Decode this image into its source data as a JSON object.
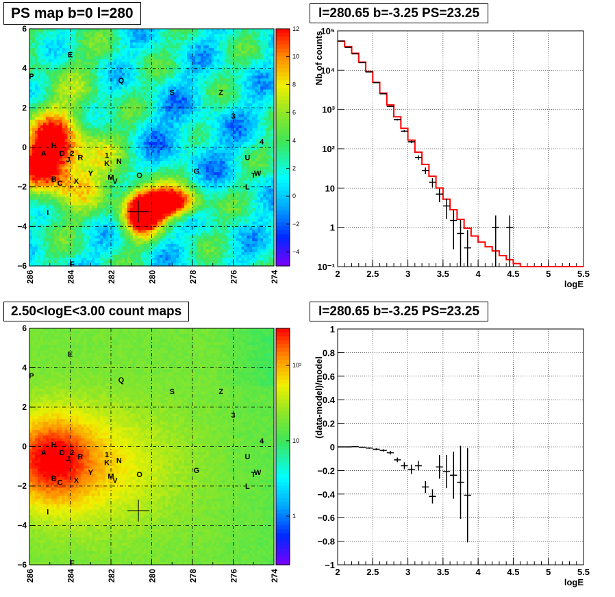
{
  "panels": {
    "tl_title": "PS map b=0 l=280",
    "tr_title": "l=280.65 b=-3.25 PS=23.25",
    "bl_title": "2.50<logE<3.00 count maps",
    "br_title": "l=280.65 b=-3.25 PS=23.25"
  },
  "colors": {
    "data": "#000000",
    "model": "#ff0000",
    "map_low": "#7b00ff",
    "map_high": "#ff0000",
    "grid": "#000000"
  },
  "map_axes": {
    "x_ticks": [
      "286",
      "284",
      "282",
      "280",
      "278",
      "276",
      "274"
    ],
    "y_ticks": [
      "6",
      "4",
      "2",
      "0",
      "−2",
      "−4",
      "−6"
    ],
    "xlim": [
      286,
      274
    ],
    "ylim": [
      -6,
      6
    ]
  },
  "sources": [
    {
      "name": "E",
      "l": 284.0,
      "b": 4.7
    },
    {
      "name": "P",
      "l": 285.9,
      "b": 3.6
    },
    {
      "name": "Q",
      "l": 281.5,
      "b": 3.4
    },
    {
      "name": "S",
      "l": 279.0,
      "b": 2.8
    },
    {
      "name": "Z",
      "l": 276.6,
      "b": 2.8
    },
    {
      "name": "3",
      "l": 276.0,
      "b": 1.6
    },
    {
      "name": "4",
      "l": 274.6,
      "b": 0.3
    },
    {
      "name": "H",
      "l": 284.8,
      "b": 0.1
    },
    {
      "name": "A",
      "l": 285.3,
      "b": -0.3
    },
    {
      "name": "D",
      "l": 284.4,
      "b": -0.3
    },
    {
      "name": "2",
      "l": 283.9,
      "b": -0.3
    },
    {
      "name": "J",
      "l": 284.1,
      "b": -0.6
    },
    {
      "name": "R",
      "l": 283.5,
      "b": -0.5
    },
    {
      "name": "1",
      "l": 282.2,
      "b": -0.4
    },
    {
      "name": "K",
      "l": 282.2,
      "b": -0.8
    },
    {
      "name": "N",
      "l": 281.6,
      "b": -0.7
    },
    {
      "name": "U",
      "l": 275.3,
      "b": -0.5
    },
    {
      "name": "Y",
      "l": 283.0,
      "b": -1.3
    },
    {
      "name": "G",
      "l": 277.8,
      "b": -1.2
    },
    {
      "name": "O",
      "l": 280.6,
      "b": -1.4
    },
    {
      "name": "M",
      "l": 282.0,
      "b": -1.5
    },
    {
      "name": "B",
      "l": 284.8,
      "b": -1.6
    },
    {
      "name": "X",
      "l": 283.7,
      "b": -1.7
    },
    {
      "name": "V",
      "l": 281.8,
      "b": -1.7
    },
    {
      "name": "W",
      "l": 274.8,
      "b": -1.3
    },
    {
      "name": "T",
      "l": 275.0,
      "b": -1.4
    },
    {
      "name": "C",
      "l": 284.5,
      "b": -1.8
    },
    {
      "name": "L",
      "l": 275.3,
      "b": -2.0
    },
    {
      "name": "I",
      "l": 285.1,
      "b": -3.3
    },
    {
      "name": "F",
      "l": 283.9,
      "b": -5.9
    }
  ],
  "target": {
    "l": 280.65,
    "b": -3.25
  },
  "chart_data": [
    {
      "type": "heatmap",
      "title": "PS map b=0 l=280",
      "xlabel": "",
      "ylabel": "",
      "xlim": [
        286,
        274
      ],
      "ylim": [
        -6,
        6
      ],
      "colorbar": {
        "scale": "linear",
        "range": [
          -5,
          12
        ],
        "ticks": [
          "12",
          "10",
          "8",
          "6",
          "4",
          "2",
          "0",
          "−2",
          "−4"
        ]
      },
      "features": [
        {
          "desc": "hot region",
          "l": 285.3,
          "b": -0.2,
          "peak": 12
        },
        {
          "desc": "hot region",
          "l": 280.4,
          "b": -3.1,
          "peak": 12
        },
        {
          "desc": "hot region",
          "l": 278.9,
          "b": -2.7,
          "peak": 12
        }
      ]
    },
    {
      "type": "line",
      "title": "l=280.65 b=-3.25 PS=23.25",
      "xlabel": "logE",
      "ylabel": "Nb of counts",
      "xlim": [
        2,
        5.5
      ],
      "ylim": [
        0.1,
        100000
      ],
      "yscale": "log",
      "x_ticks": [
        "2",
        "2.5",
        "3",
        "3.5",
        "4",
        "4.5",
        "5",
        "5.5"
      ],
      "y_ticks": [
        "10⁵",
        "10⁴",
        "10³",
        "10²",
        "10",
        "1",
        "10⁻¹"
      ],
      "grid": true,
      "bin_edges": [
        2.0,
        2.1,
        2.2,
        2.3,
        2.4,
        2.5,
        2.6,
        2.7,
        2.8,
        2.9,
        3.0,
        3.1,
        3.2,
        3.3,
        3.4,
        3.5,
        3.6,
        3.7,
        3.8,
        3.9,
        4.0,
        4.1,
        4.2,
        4.3,
        4.4,
        4.5,
        4.6,
        4.7,
        4.8,
        4.9,
        5.0,
        5.1,
        5.2,
        5.3,
        5.4,
        5.5
      ],
      "model": [
        55000,
        40000,
        27000,
        16000,
        9200,
        4900,
        2600,
        1300,
        650,
        330,
        165,
        82,
        40,
        20,
        10,
        5.2,
        2.8,
        1.6,
        0.95,
        0.6,
        0.42,
        0.32,
        0.25,
        0.19,
        0.15,
        0.12,
        0.1,
        0.1,
        0.1,
        0.1,
        0.1,
        0.1,
        0.1,
        0.1,
        0.1
      ],
      "data_points": [
        {
          "x": 2.05,
          "y": 55000
        },
        {
          "x": 2.15,
          "y": 38000
        },
        {
          "x": 2.25,
          "y": 26000
        },
        {
          "x": 2.35,
          "y": 15500
        },
        {
          "x": 2.45,
          "y": 9000
        },
        {
          "x": 2.55,
          "y": 4800
        },
        {
          "x": 2.65,
          "y": 2500
        },
        {
          "x": 2.75,
          "y": 1200
        },
        {
          "x": 2.85,
          "y": 550
        },
        {
          "x": 2.95,
          "y": 280
        },
        {
          "x": 3.05,
          "y": 150
        },
        {
          "x": 3.15,
          "y": 60
        },
        {
          "x": 3.25,
          "y": 28
        },
        {
          "x": 3.35,
          "y": 14
        },
        {
          "x": 3.45,
          "y": 7
        },
        {
          "x": 3.55,
          "y": 3.5
        },
        {
          "x": 3.65,
          "y": 1.5
        },
        {
          "x": 3.75,
          "y": 0.7
        },
        {
          "x": 3.85,
          "y": 0.3
        },
        {
          "x": 4.25,
          "y": 1
        },
        {
          "x": 4.45,
          "y": 1
        }
      ]
    },
    {
      "type": "heatmap",
      "title": "2.50<logE<3.00 count maps",
      "xlabel": "",
      "ylabel": "",
      "xlim": [
        286,
        274
      ],
      "ylim": [
        -6,
        6
      ],
      "colorbar": {
        "scale": "log",
        "ticks": [
          "10²",
          "10",
          "1"
        ]
      },
      "features": [
        {
          "desc": "peak",
          "l": 285.0,
          "b": -0.3,
          "level": "red"
        },
        {
          "desc": "falloff",
          "l": 274,
          "b": 6,
          "level": "green"
        }
      ]
    },
    {
      "type": "scatter",
      "title": "l=280.65 b=-3.25 PS=23.25",
      "xlabel": "logE",
      "ylabel": "(data-model)/model",
      "xlim": [
        2,
        5.5
      ],
      "ylim": [
        -1,
        1
      ],
      "x_ticks": [
        "2",
        "2.5",
        "3",
        "3.5",
        "4",
        "4.5",
        "5",
        "5.5"
      ],
      "y_ticks": [
        "1",
        "0.8",
        "0.6",
        "0.4",
        "0.2",
        "0",
        "−0.2",
        "−0.4",
        "−0.6",
        "−0.8",
        "−1"
      ],
      "grid": true,
      "points": [
        {
          "x": 2.05,
          "y": 0.0,
          "err": 0.003
        },
        {
          "x": 2.15,
          "y": 0.0,
          "err": 0.003
        },
        {
          "x": 2.25,
          "y": 0.002,
          "err": 0.004
        },
        {
          "x": 2.35,
          "y": -0.003,
          "err": 0.005
        },
        {
          "x": 2.45,
          "y": -0.01,
          "err": 0.006
        },
        {
          "x": 2.55,
          "y": -0.02,
          "err": 0.008
        },
        {
          "x": 2.65,
          "y": -0.03,
          "err": 0.01
        },
        {
          "x": 2.75,
          "y": -0.05,
          "err": 0.015
        },
        {
          "x": 2.85,
          "y": -0.11,
          "err": 0.02
        },
        {
          "x": 2.95,
          "y": -0.16,
          "err": 0.03
        },
        {
          "x": 3.05,
          "y": -0.19,
          "err": 0.04
        },
        {
          "x": 3.15,
          "y": -0.16,
          "err": 0.04
        },
        {
          "x": 3.25,
          "y": -0.34,
          "err": 0.05
        },
        {
          "x": 3.35,
          "y": -0.42,
          "err": 0.06
        },
        {
          "x": 3.45,
          "y": -0.17,
          "err": 0.1
        },
        {
          "x": 3.55,
          "y": -0.21,
          "err": 0.14
        },
        {
          "x": 3.65,
          "y": -0.24,
          "err": 0.2
        },
        {
          "x": 3.75,
          "y": -0.3,
          "err": 0.31
        },
        {
          "x": 3.85,
          "y": -0.41,
          "err": 0.4
        }
      ]
    }
  ]
}
